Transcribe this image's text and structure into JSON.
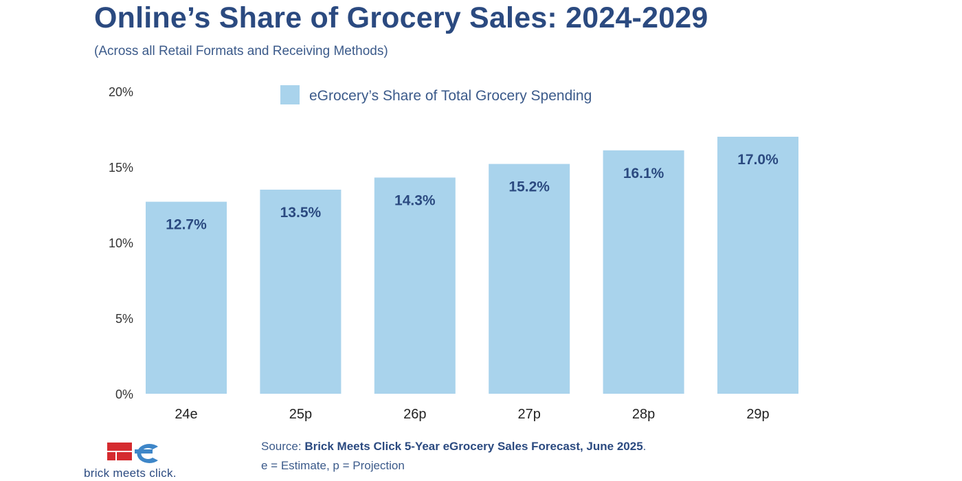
{
  "header": {
    "title": "Online’s Share of Grocery Sales: 2024-2029",
    "subtitle": "(Across all Retail Formats and Receiving Methods)"
  },
  "chart_data": {
    "type": "bar",
    "categories": [
      "24e",
      "25p",
      "26p",
      "27p",
      "28p",
      "29p"
    ],
    "series": [
      {
        "name": "eGrocery’s Share of Total Grocery Spending",
        "values": [
          12.7,
          13.5,
          14.3,
          15.2,
          16.1,
          17.0
        ],
        "labels": [
          "12.7%",
          "13.5%",
          "14.3%",
          "15.2%",
          "16.1%",
          "17.0%"
        ]
      }
    ],
    "y_ticks": [
      "0%",
      "5%",
      "10%",
      "15%",
      "20%"
    ],
    "y_tick_values": [
      0,
      5,
      10,
      15,
      20
    ],
    "ylim": [
      0,
      20
    ],
    "grid": false,
    "legend_position": "top-center"
  },
  "footer": {
    "source_prefix": "Source: ",
    "source_bold": "Brick Meets Click 5-Year eGrocery Sales Forecast, June 2025",
    "source_suffix": ".",
    "note": "e = Estimate, p = Projection",
    "logo_text": "brick meets click."
  },
  "colors": {
    "bar": "#a9d3ec",
    "title": "#2b4a80",
    "data_label": "#2b4a80",
    "axis_text": "#333333",
    "logo_red": "#d52b2f",
    "logo_blue": "#3e86c8"
  }
}
